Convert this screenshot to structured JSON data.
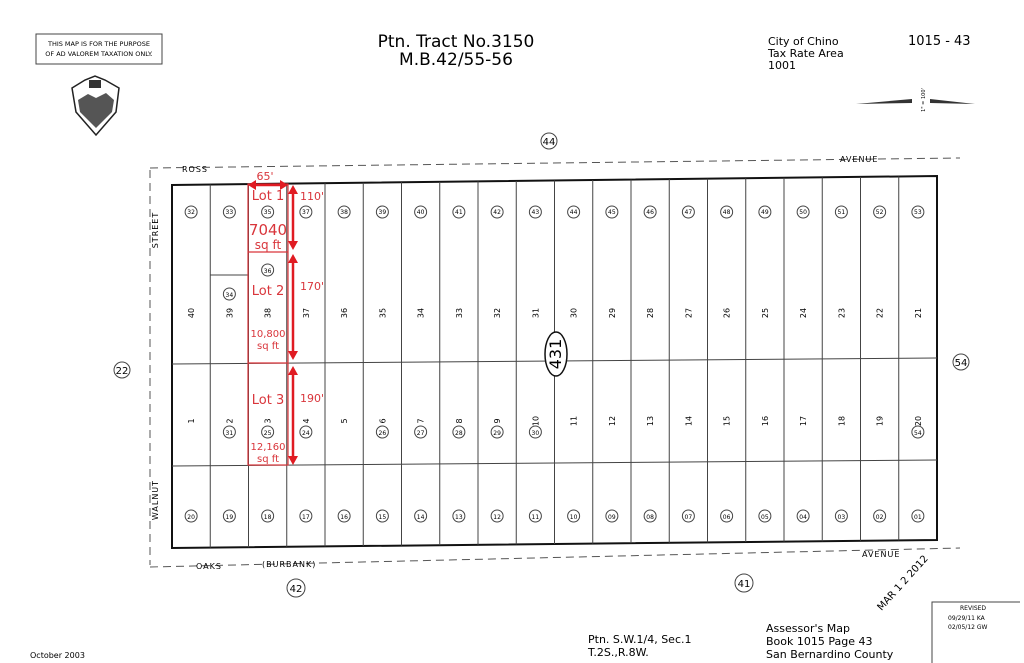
{
  "header": {
    "disclaimer": [
      "THIS MAP IS FOR THE PURPOSE",
      "OF AD VALOREM TAXATION ONLY."
    ],
    "title_line1": "Ptn. Tract No.3150",
    "title_line2": "M.B.42/55-56",
    "city": "City of Chino",
    "tax_rate_area_label": "Tax Rate Area",
    "tax_rate_area": "1001",
    "map_number": "1015 - 43",
    "scale_label": "1\" = 100'"
  },
  "streets": {
    "top_left": "ROSS",
    "top_right": "AVENUE",
    "left_upper": "STREET",
    "left_lower": "WALNUT",
    "bottom_left": "OAKS",
    "bottom_mid": "(BURBANK)",
    "bottom_right": "AVENUE"
  },
  "adjacent_pages": {
    "top": "44",
    "left": "22",
    "right": "54",
    "bottom_left": "42",
    "bottom_right": "41"
  },
  "block_label": "431",
  "parcels": {
    "top_lots": [
      "40",
      "39",
      "38",
      "37",
      "36",
      "35",
      "34",
      "33",
      "32",
      "31",
      "30",
      "29",
      "28",
      "27",
      "26",
      "25",
      "24",
      "23",
      "22",
      "21"
    ],
    "top_parcel_numbers": [
      "32",
      "33",
      "35",
      "37",
      "38",
      "39",
      "40",
      "41",
      "42",
      "43",
      "44",
      "45",
      "46",
      "47",
      "48",
      "49",
      "50",
      "51",
      "52",
      "53"
    ],
    "middle_lots": [
      "1",
      "2",
      "3",
      "4",
      "5",
      "6",
      "7",
      "8",
      "9",
      "10",
      "11",
      "12",
      "13",
      "14",
      "15",
      "16",
      "17",
      "18",
      "19",
      "20"
    ],
    "middle_parcel_numbers": [
      "",
      "31",
      "25",
      "24",
      "",
      "26",
      "27",
      "28",
      "29",
      "30",
      "",
      "",
      "",
      "",
      "",
      "",
      "",
      "",
      "",
      "54"
    ],
    "bottom_parcel_numbers": [
      "20",
      "19",
      "18",
      "17",
      "16",
      "15",
      "14",
      "13",
      "12",
      "11",
      "10",
      "09",
      "08",
      "07",
      "06",
      "05",
      "04",
      "03",
      "02",
      "01"
    ],
    "extra_parcels": {
      "lot2_top": "36",
      "lot39": "34"
    }
  },
  "annotations": {
    "color": "#d9353b",
    "width": "65'",
    "lot1": {
      "label": "Lot 1",
      "area": "7040",
      "unit": "sq ft",
      "depth": "110'"
    },
    "lot2": {
      "label": "Lot 2",
      "area": "10,800",
      "unit": "sq ft",
      "depth": "170'"
    },
    "lot3": {
      "label": "Lot 3",
      "area": "12,160",
      "unit": "sq ft",
      "depth": "190'"
    }
  },
  "footer": {
    "date": "October 2003",
    "section_line1": "Ptn. S.W.1/4, Sec.1",
    "section_line2": "T.2S.,R.8W.",
    "assessor_line1": "Assessor's Map",
    "assessor_line2": "Book 1015 Page 43",
    "assessor_line3": "San Bernardino County",
    "stamp": "MAR 1 2 2012",
    "revised_label": "REVISED",
    "revised_1": "09/29/11 KA",
    "revised_2": "02/05/12 GW"
  }
}
